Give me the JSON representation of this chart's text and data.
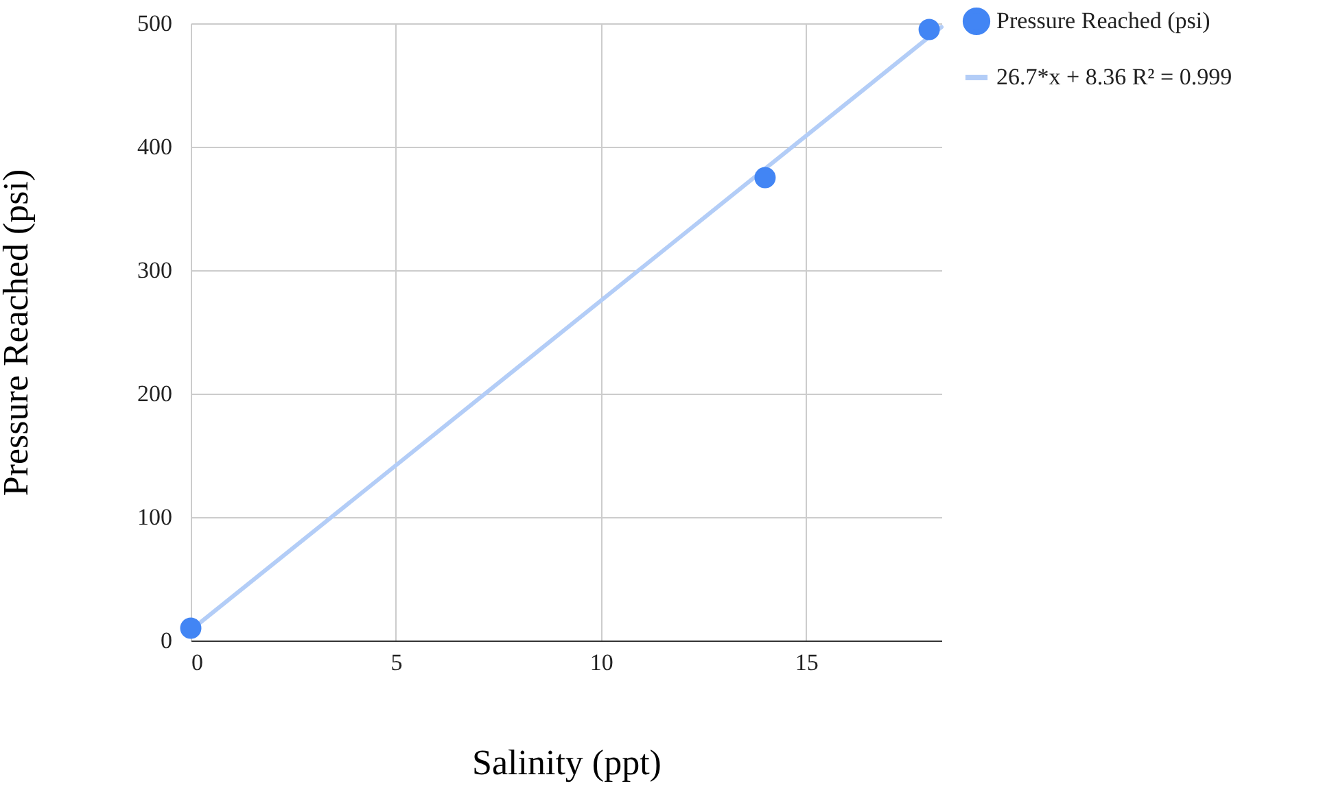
{
  "chart_data": {
    "type": "scatter",
    "xlabel": "Salinity (ppt)",
    "ylabel": "Pressure Reached (psi)",
    "xlim": [
      0,
      18.3
    ],
    "xticks": [
      0,
      5,
      10,
      15
    ],
    "ylim": [
      0,
      500
    ],
    "yticks": [
      0,
      100,
      200,
      300,
      400,
      500
    ],
    "grid": true,
    "legend": "top right",
    "series": [
      {
        "name": "Pressure Reached (psi)",
        "marker": "circle",
        "color": "#4285f4",
        "x": [
          0,
          14,
          18
        ],
        "values": [
          10,
          375,
          495
        ]
      },
      {
        "name": "26.7*x + 8.36 R² = 0.999",
        "type": "line",
        "marker": "none",
        "color": "#b3cdf7",
        "line_style": "solid",
        "x": [
          0,
          18.3
        ],
        "values": [
          8.4,
          497
        ]
      }
    ]
  }
}
